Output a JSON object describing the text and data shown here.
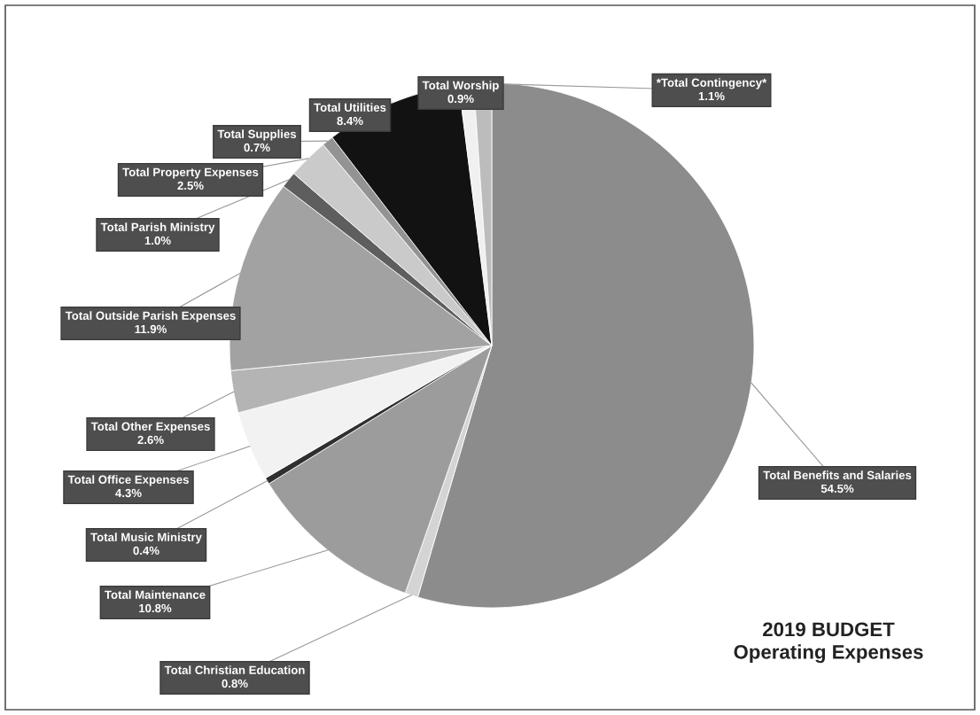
{
  "chart_data": {
    "type": "pie",
    "title": "2019 BUDGET\nOperating Expenses",
    "categories": [
      "Total Benefits and Salaries",
      "Total Christian Education",
      "Total Maintenance",
      "Total Music Ministry",
      "Total Office Expenses",
      "Total Other Expenses",
      "Total Outside Parish Expenses",
      "Total Parish Ministry",
      "Total Property Expenses",
      "Total Supplies",
      "Total Utilities",
      "Total Worship",
      "*Total Contingency*"
    ],
    "values": [
      54.5,
      0.8,
      10.8,
      0.4,
      4.3,
      2.6,
      11.9,
      1.0,
      2.5,
      0.7,
      8.4,
      0.9,
      1.1
    ],
    "value_labels": [
      "54.5%",
      "0.8%",
      "10.8%",
      "0.4%",
      "4.3%",
      "2.6%",
      "11.9%",
      "1.0%",
      "2.5%",
      "0.7%",
      "8.4%",
      "0.9%",
      "1.1%"
    ],
    "colors": [
      "#8c8c8c",
      "#d4d4d4",
      "#9c9c9c",
      "#303030",
      "#f2f2f2",
      "#b4b4b4",
      "#a2a2a2",
      "#5e5e5e",
      "#cacaca",
      "#939393",
      "#121212",
      "#f0f0f0",
      "#bcbcbc"
    ],
    "legend": false
  }
}
